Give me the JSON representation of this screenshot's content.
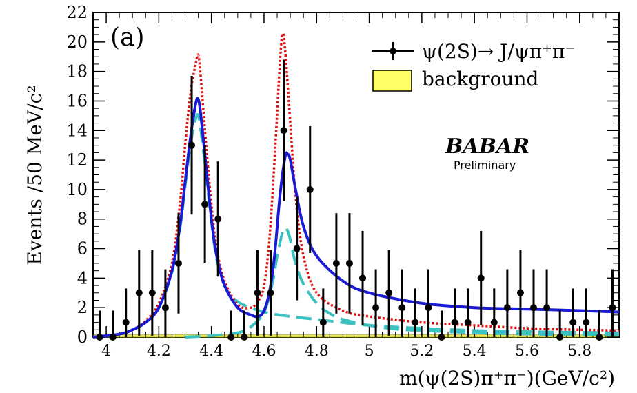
{
  "chart_data": {
    "type": "scatter",
    "panel_label": "(a)",
    "xlabel": "m(ψ(2S)π⁺π⁻)(GeV/c²)",
    "ylabel": "Events /50 MeV/c²",
    "xlim": [
      3.95,
      5.95
    ],
    "ylim": [
      0,
      22
    ],
    "x_ticks": [
      "4",
      "4.2",
      "4.4",
      "4.6",
      "4.8",
      "5",
      "5.2",
      "5.4",
      "5.6",
      "5.8"
    ],
    "y_ticks": [
      "0",
      "2",
      "4",
      "6",
      "8",
      "10",
      "12",
      "14",
      "16",
      "18",
      "20",
      "22"
    ],
    "watermark": {
      "logo": "BABAR",
      "sub": "Preliminary"
    },
    "legend": [
      {
        "label": "ψ(2S)→ J/ψπ⁺π⁻",
        "kind": "data-points"
      },
      {
        "label": "background",
        "kind": "filled-box"
      }
    ],
    "colors": {
      "data": "#000000",
      "total_fit": "#1a1ad4",
      "components": "#3cc1c1",
      "alt_fit": "#e01010",
      "background_fill": "#ffff66",
      "background_edge": "#999900"
    },
    "series": [
      {
        "name": "data",
        "points": [
          {
            "x": 3.975,
            "y": 0,
            "err": 1.8
          },
          {
            "x": 4.025,
            "y": 0,
            "err": 1.8
          },
          {
            "x": 4.075,
            "y": 1,
            "err": 2.3
          },
          {
            "x": 4.125,
            "y": 3,
            "err": 2.9
          },
          {
            "x": 4.175,
            "y": 3,
            "err": 2.9
          },
          {
            "x": 4.225,
            "y": 2,
            "err": 2.6
          },
          {
            "x": 4.275,
            "y": 5,
            "err": 3.4
          },
          {
            "x": 4.325,
            "y": 13,
            "err": 4.7
          },
          {
            "x": 4.375,
            "y": 9,
            "err": 4.0
          },
          {
            "x": 4.425,
            "y": 8,
            "err": 3.9
          },
          {
            "x": 4.475,
            "y": 0,
            "err": 1.8
          },
          {
            "x": 4.525,
            "y": 0,
            "err": 1.8
          },
          {
            "x": 4.575,
            "y": 3,
            "err": 2.9
          },
          {
            "x": 4.625,
            "y": 3,
            "err": 2.9
          },
          {
            "x": 4.675,
            "y": 14,
            "err": 4.8
          },
          {
            "x": 4.725,
            "y": 6,
            "err": 3.5
          },
          {
            "x": 4.775,
            "y": 10,
            "err": 4.3
          },
          {
            "x": 4.825,
            "y": 1,
            "err": 2.3
          },
          {
            "x": 4.875,
            "y": 5,
            "err": 3.4
          },
          {
            "x": 4.925,
            "y": 5,
            "err": 3.4
          },
          {
            "x": 4.975,
            "y": 4,
            "err": 3.2
          },
          {
            "x": 5.025,
            "y": 2,
            "err": 2.6
          },
          {
            "x": 5.075,
            "y": 3,
            "err": 2.9
          },
          {
            "x": 5.125,
            "y": 2,
            "err": 2.6
          },
          {
            "x": 5.175,
            "y": 1,
            "err": 2.3
          },
          {
            "x": 5.225,
            "y": 2,
            "err": 2.6
          },
          {
            "x": 5.275,
            "y": 0,
            "err": 1.8
          },
          {
            "x": 5.325,
            "y": 1,
            "err": 2.3
          },
          {
            "x": 5.375,
            "y": 1,
            "err": 2.3
          },
          {
            "x": 5.425,
            "y": 4,
            "err": 3.2
          },
          {
            "x": 5.475,
            "y": 1,
            "err": 2.3
          },
          {
            "x": 5.525,
            "y": 2,
            "err": 2.6
          },
          {
            "x": 5.575,
            "y": 3,
            "err": 2.9
          },
          {
            "x": 5.625,
            "y": 2,
            "err": 2.6
          },
          {
            "x": 5.675,
            "y": 2,
            "err": 2.6
          },
          {
            "x": 5.725,
            "y": 0,
            "err": 1.8
          },
          {
            "x": 5.775,
            "y": 1,
            "err": 2.3
          },
          {
            "x": 5.825,
            "y": 1,
            "err": 2.3
          },
          {
            "x": 5.875,
            "y": 0,
            "err": 1.8
          },
          {
            "x": 5.925,
            "y": 2,
            "err": 2.6
          }
        ]
      },
      {
        "name": "total fit (blue solid)",
        "x": [
          3.95,
          4.05,
          4.1,
          4.15,
          4.2,
          4.25,
          4.28,
          4.3,
          4.32,
          4.34,
          4.35,
          4.36,
          4.38,
          4.4,
          4.42,
          4.45,
          4.5,
          4.55,
          4.58,
          4.6,
          4.62,
          4.64,
          4.66,
          4.68,
          4.69,
          4.7,
          4.72,
          4.75,
          4.8,
          4.9,
          5.0,
          5.2,
          5.4,
          5.6,
          5.8,
          5.95
        ],
        "y": [
          0.0,
          0.2,
          0.5,
          1.0,
          2.0,
          4.5,
          7.5,
          10.5,
          13.5,
          15.8,
          16.1,
          15.0,
          11.5,
          8.0,
          5.5,
          3.5,
          2.0,
          1.5,
          1.4,
          1.8,
          3.0,
          5.5,
          9.5,
          12.2,
          12.4,
          12.0,
          10.0,
          7.5,
          5.5,
          3.8,
          3.0,
          2.3,
          2.0,
          1.9,
          1.8,
          1.7
        ]
      },
      {
        "name": "alternative fit (red dotted)",
        "x": [
          3.95,
          4.05,
          4.1,
          4.15,
          4.2,
          4.25,
          4.28,
          4.3,
          4.32,
          4.34,
          4.35,
          4.36,
          4.38,
          4.4,
          4.42,
          4.45,
          4.5,
          4.55,
          4.58,
          4.6,
          4.62,
          4.64,
          4.66,
          4.67,
          4.68,
          4.7,
          4.72,
          4.75,
          4.8,
          4.9,
          5.0,
          5.2,
          5.4,
          5.6,
          5.8,
          5.95
        ],
        "y": [
          0.0,
          0.2,
          0.5,
          1.1,
          2.3,
          5.0,
          9.0,
          13.0,
          16.5,
          18.5,
          19.1,
          17.5,
          13.0,
          9.0,
          6.0,
          3.8,
          2.2,
          2.0,
          2.5,
          3.5,
          6.5,
          12.0,
          18.5,
          20.5,
          19.5,
          14.5,
          9.5,
          5.5,
          3.0,
          1.8,
          1.4,
          1.0,
          0.8,
          0.6,
          0.5,
          0.45
        ]
      },
      {
        "name": "component 1 (cyan dashed)",
        "x": [
          3.95,
          4.05,
          4.1,
          4.15,
          4.2,
          4.25,
          4.28,
          4.3,
          4.32,
          4.34,
          4.35,
          4.36,
          4.38,
          4.4,
          4.42,
          4.45,
          4.5,
          4.6,
          4.7,
          4.8,
          5.0,
          5.2,
          5.5,
          5.95
        ],
        "y": [
          0.0,
          0.2,
          0.5,
          1.0,
          2.0,
          4.4,
          7.3,
          10.2,
          13.0,
          14.8,
          15.0,
          14.0,
          11.0,
          7.8,
          5.3,
          3.5,
          2.4,
          1.7,
          1.4,
          1.2,
          0.8,
          0.6,
          0.4,
          0.3
        ]
      },
      {
        "name": "component 2 (cyan dashed)",
        "x": [
          4.3,
          4.4,
          4.5,
          4.55,
          4.6,
          4.63,
          4.65,
          4.67,
          4.68,
          4.69,
          4.7,
          4.72,
          4.75,
          4.8,
          4.85,
          4.9,
          5.0,
          5.1,
          5.2,
          5.4,
          5.6,
          5.95
        ],
        "y": [
          0.0,
          0.1,
          0.3,
          0.7,
          1.7,
          3.5,
          5.5,
          7.1,
          7.4,
          7.2,
          6.6,
          5.0,
          3.6,
          2.3,
          1.6,
          1.2,
          0.8,
          0.55,
          0.45,
          0.3,
          0.2,
          0.15
        ]
      },
      {
        "name": "background",
        "x": [
          3.95,
          5.95
        ],
        "y": [
          0.15,
          0.15
        ]
      }
    ]
  }
}
